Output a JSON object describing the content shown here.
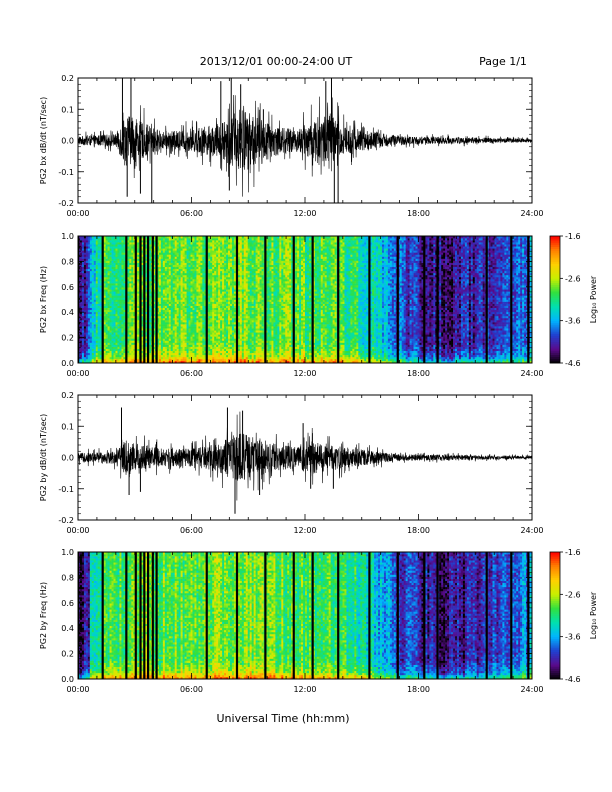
{
  "header": {
    "date_range": "2013/12/01   00:00-24:00 UT",
    "page": "Page 1/1"
  },
  "xaxis": {
    "label": "Universal Time (hh:mm)",
    "ticks": [
      "00:00",
      "06:00",
      "12:00",
      "18:00",
      "24:00"
    ]
  },
  "colorbar": {
    "label": "Log₁₀ Power",
    "ticks": [
      "-1.6",
      "-2.6",
      "-3.6",
      "-4.6"
    ],
    "range": [
      -4.6,
      -1.6
    ],
    "colors": [
      "#000000",
      "#5a0a8c",
      "#2040d0",
      "#00b4ff",
      "#00e0b0",
      "#30e040",
      "#c8f000",
      "#ffd000",
      "#ff8000",
      "#ff0000"
    ]
  },
  "chart_data": [
    {
      "type": "line",
      "title": "",
      "ylabel": "PG2 bx dB/dt (nT/sec)",
      "xlim": [
        0,
        24
      ],
      "ylim": [
        -0.2,
        0.2
      ],
      "yticks": [
        "-0.2",
        "-0.1",
        "0.0",
        "0.1",
        "0.2"
      ],
      "envelope": [
        {
          "t": 0,
          "amp": 0.02
        },
        {
          "t": 2,
          "amp": 0.03
        },
        {
          "t": 2.5,
          "amp": 0.12
        },
        {
          "t": 3.5,
          "amp": 0.08
        },
        {
          "t": 4.5,
          "amp": 0.04
        },
        {
          "t": 6,
          "amp": 0.05
        },
        {
          "t": 7.5,
          "amp": 0.08
        },
        {
          "t": 8.7,
          "amp": 0.15
        },
        {
          "t": 10,
          "amp": 0.08
        },
        {
          "t": 11.5,
          "amp": 0.05
        },
        {
          "t": 13.3,
          "amp": 0.14
        },
        {
          "t": 14,
          "amp": 0.07
        },
        {
          "t": 15.5,
          "amp": 0.04
        },
        {
          "t": 17,
          "amp": 0.02
        },
        {
          "t": 24,
          "amp": 0.008
        }
      ],
      "spikes": [
        {
          "t": 2.35,
          "v": 0.2
        },
        {
          "t": 2.6,
          "v": -0.18
        },
        {
          "t": 2.8,
          "v": 0.2
        },
        {
          "t": 3.3,
          "v": -0.17
        },
        {
          "t": 3.9,
          "v": -0.2
        },
        {
          "t": 7.55,
          "v": 0.19
        },
        {
          "t": 8.0,
          "v": -0.16
        },
        {
          "t": 8.1,
          "v": 0.2
        },
        {
          "t": 8.6,
          "v": 0.18
        },
        {
          "t": 9.8,
          "v": 0.1
        },
        {
          "t": 13.1,
          "v": 0.19
        },
        {
          "t": 13.4,
          "v": 0.2
        },
        {
          "t": 13.55,
          "v": -0.2
        },
        {
          "t": 13.75,
          "v": -0.2
        }
      ]
    },
    {
      "type": "heatmap",
      "title": "",
      "ylabel": "PG2 bx Freq (Hz)",
      "xlim": [
        0,
        24
      ],
      "ylim": [
        0,
        1.0
      ],
      "yticks": [
        "0.0",
        "0.2",
        "0.4",
        "0.6",
        "0.8",
        "1.0"
      ],
      "gaps": [
        0.0,
        1.3,
        2.55,
        3.05,
        3.3,
        3.5,
        3.7,
        3.95,
        4.15,
        6.8,
        8.4,
        9.9,
        11.4,
        12.4,
        13.75,
        15.4,
        16.9,
        18.3,
        19.0,
        21.6,
        22.9,
        23.8
      ],
      "background_power": [
        {
          "t": 0,
          "p": -3.8
        },
        {
          "t": 1.5,
          "p": -3.0
        },
        {
          "t": 3,
          "p": -2.9
        },
        {
          "t": 8,
          "p": -2.8
        },
        {
          "t": 13,
          "p": -2.95
        },
        {
          "t": 15.5,
          "p": -3.3
        },
        {
          "t": 17,
          "p": -3.9
        },
        {
          "t": 19.5,
          "p": -4.3
        },
        {
          "t": 22,
          "p": -4.0
        },
        {
          "t": 24,
          "p": -3.7
        }
      ]
    },
    {
      "type": "line",
      "title": "",
      "ylabel": "PG2 by dB/dt (nT/sec)",
      "xlim": [
        0,
        24
      ],
      "ylim": [
        -0.2,
        0.2
      ],
      "yticks": [
        "-0.2",
        "-0.1",
        "0.0",
        "0.1",
        "0.2"
      ],
      "envelope": [
        {
          "t": 0,
          "amp": 0.02
        },
        {
          "t": 2,
          "amp": 0.03
        },
        {
          "t": 2.5,
          "amp": 0.08
        },
        {
          "t": 3.5,
          "amp": 0.06
        },
        {
          "t": 4.5,
          "amp": 0.04
        },
        {
          "t": 6,
          "amp": 0.04
        },
        {
          "t": 7.5,
          "amp": 0.07
        },
        {
          "t": 8.7,
          "amp": 0.12
        },
        {
          "t": 10,
          "amp": 0.07
        },
        {
          "t": 11.5,
          "amp": 0.05
        },
        {
          "t": 12.2,
          "amp": 0.08
        },
        {
          "t": 14,
          "amp": 0.05
        },
        {
          "t": 15.5,
          "amp": 0.03
        },
        {
          "t": 17,
          "amp": 0.015
        },
        {
          "t": 24,
          "amp": 0.007
        }
      ],
      "spikes": [
        {
          "t": 2.3,
          "v": 0.16
        },
        {
          "t": 2.7,
          "v": -0.12
        },
        {
          "t": 3.3,
          "v": -0.11
        },
        {
          "t": 7.9,
          "v": 0.16
        },
        {
          "t": 8.3,
          "v": -0.18
        },
        {
          "t": 8.7,
          "v": 0.15
        },
        {
          "t": 9.6,
          "v": -0.12
        },
        {
          "t": 11.9,
          "v": 0.11
        },
        {
          "t": 12.3,
          "v": -0.1
        },
        {
          "t": 13.5,
          "v": -0.1
        }
      ]
    },
    {
      "type": "heatmap",
      "title": "",
      "ylabel": "PG2 by Freq (Hz)",
      "xlim": [
        0,
        24
      ],
      "ylim": [
        0,
        1.0
      ],
      "yticks": [
        "0.0",
        "0.2",
        "0.4",
        "0.6",
        "0.8",
        "1.0"
      ],
      "gaps": [
        0.0,
        1.3,
        2.55,
        3.05,
        3.3,
        3.5,
        3.7,
        3.95,
        4.15,
        6.8,
        8.4,
        9.9,
        11.4,
        12.4,
        13.75,
        15.4,
        16.9,
        18.3,
        19.0,
        21.6,
        22.9,
        23.8
      ],
      "background_power": [
        {
          "t": 0,
          "p": -3.9
        },
        {
          "t": 1.5,
          "p": -3.0
        },
        {
          "t": 3,
          "p": -2.9
        },
        {
          "t": 8,
          "p": -2.8
        },
        {
          "t": 13,
          "p": -2.95
        },
        {
          "t": 15.5,
          "p": -3.3
        },
        {
          "t": 17,
          "p": -4.0
        },
        {
          "t": 19.5,
          "p": -4.35
        },
        {
          "t": 22,
          "p": -4.0
        },
        {
          "t": 24,
          "p": -3.7
        }
      ]
    }
  ]
}
